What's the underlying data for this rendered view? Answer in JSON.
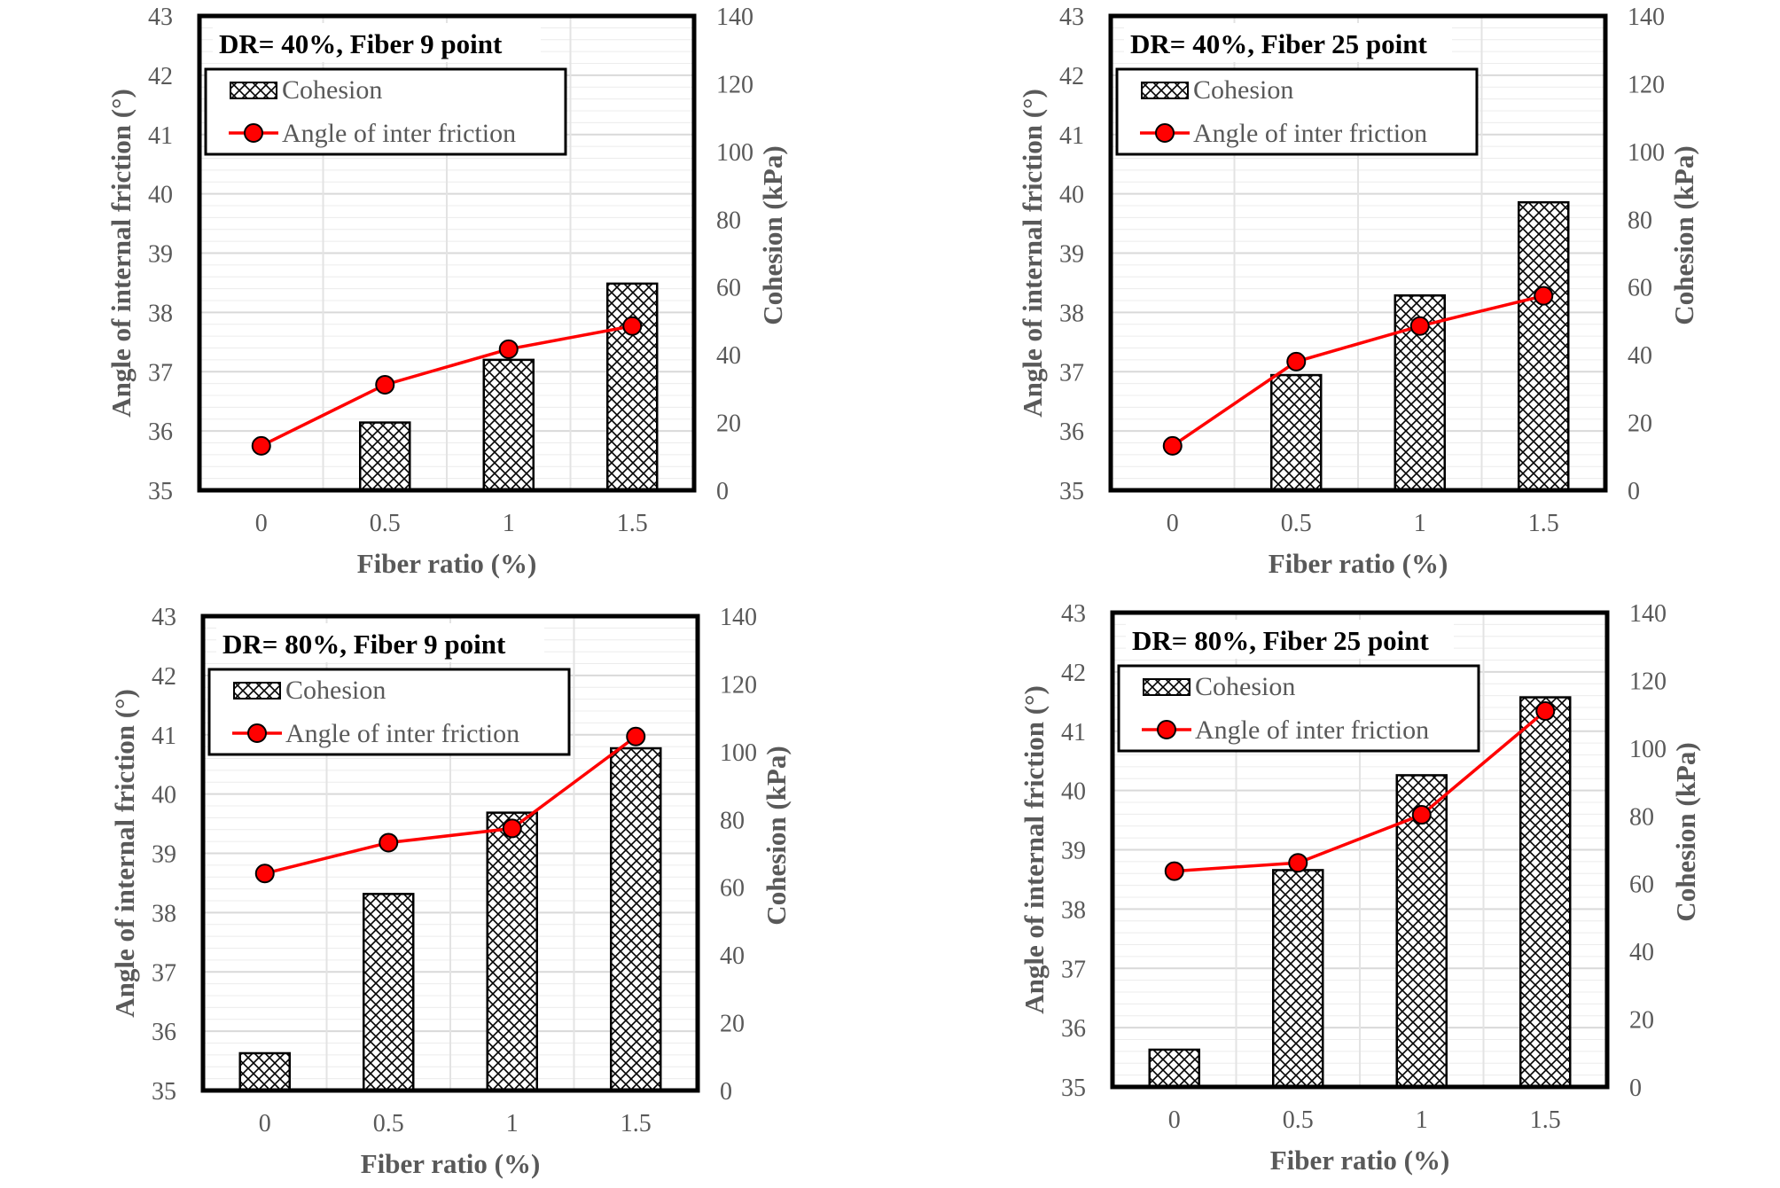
{
  "chart_data": [
    {
      "type": "bar",
      "title": "DR= 40%, Fiber 9 point",
      "xlabel": "Fiber ratio (%)",
      "ylabel": "Angle of internal friction (°)",
      "y2label": "Cohesion (kPa)",
      "categories": [
        "0",
        "0.5",
        "1",
        "1.5"
      ],
      "ylim": [
        35,
        43
      ],
      "y2lim": [
        0,
        140
      ],
      "yticks": [
        "35",
        "36",
        "37",
        "38",
        "39",
        "40",
        "41",
        "42",
        "43"
      ],
      "y2ticks": [
        "0",
        "20",
        "40",
        "60",
        "80",
        "100",
        "120",
        "140"
      ],
      "legend": "top-left",
      "series": [
        {
          "name": "Cohesion",
          "type": "bar",
          "axis": "right",
          "values": [
            0,
            20,
            38.5,
            61
          ]
        },
        {
          "name": "Angle of inter friction",
          "type": "line",
          "axis": "left",
          "values": [
            35.75,
            36.78,
            37.38,
            37.77
          ]
        }
      ]
    },
    {
      "type": "bar",
      "title": "DR= 40%, Fiber 25 point",
      "xlabel": "Fiber ratio (%)",
      "ylabel": "Angle of internal friction (°)",
      "y2label": "Cohesion (kPa)",
      "categories": [
        "0",
        "0.5",
        "1",
        "1.5"
      ],
      "ylim": [
        35,
        43
      ],
      "y2lim": [
        0,
        140
      ],
      "yticks": [
        "35",
        "36",
        "37",
        "38",
        "39",
        "40",
        "41",
        "42",
        "43"
      ],
      "y2ticks": [
        "0",
        "20",
        "40",
        "60",
        "80",
        "100",
        "120",
        "140"
      ],
      "legend": "top-left",
      "series": [
        {
          "name": "Cohesion",
          "type": "bar",
          "axis": "right",
          "values": [
            0,
            34,
            57.5,
            85
          ]
        },
        {
          "name": "Angle of inter friction",
          "type": "line",
          "axis": "left",
          "values": [
            35.75,
            37.17,
            37.77,
            38.28
          ]
        }
      ]
    },
    {
      "type": "bar",
      "title": "DR= 80%, Fiber 9 point",
      "xlabel": "Fiber ratio (%)",
      "ylabel": "Angle of internal friction (°)",
      "y2label": "Cohesion (kPa)",
      "categories": [
        "0",
        "0.5",
        "1",
        "1.5"
      ],
      "ylim": [
        35,
        43
      ],
      "y2lim": [
        0,
        140
      ],
      "yticks": [
        "35",
        "36",
        "37",
        "38",
        "39",
        "40",
        "41",
        "42",
        "43"
      ],
      "y2ticks": [
        "0",
        "20",
        "40",
        "60",
        "80",
        "100",
        "120",
        "140"
      ],
      "legend": "top-left",
      "series": [
        {
          "name": "Cohesion",
          "type": "bar",
          "axis": "right",
          "values": [
            11,
            58,
            82,
            101
          ]
        },
        {
          "name": "Angle of inter friction",
          "type": "line",
          "axis": "left",
          "values": [
            38.66,
            39.18,
            39.42,
            40.97
          ]
        }
      ]
    },
    {
      "type": "bar",
      "title": "DR= 80%, Fiber 25 point",
      "xlabel": "Fiber ratio (%)",
      "ylabel": "Angle of internal friction (°)",
      "y2label": "Cohesion (kPa)",
      "categories": [
        "0",
        "0.5",
        "1",
        "1.5"
      ],
      "ylim": [
        35,
        43
      ],
      "y2lim": [
        0,
        140
      ],
      "yticks": [
        "35",
        "36",
        "37",
        "38",
        "39",
        "40",
        "41",
        "42",
        "43"
      ],
      "y2ticks": [
        "0",
        "20",
        "40",
        "60",
        "80",
        "100",
        "120",
        "140"
      ],
      "legend": "top-left",
      "series": [
        {
          "name": "Cohesion",
          "type": "bar",
          "axis": "right",
          "values": [
            11,
            64,
            92,
            115
          ]
        },
        {
          "name": "Angle of inter friction",
          "type": "line",
          "axis": "left",
          "values": [
            38.64,
            38.78,
            39.59,
            41.34
          ]
        }
      ]
    }
  ],
  "colors": {
    "line": "#ff0000",
    "marker": "#ff0000",
    "axis_text": "#595959",
    "frame": "#000000",
    "grid": "#d9d9d9"
  }
}
